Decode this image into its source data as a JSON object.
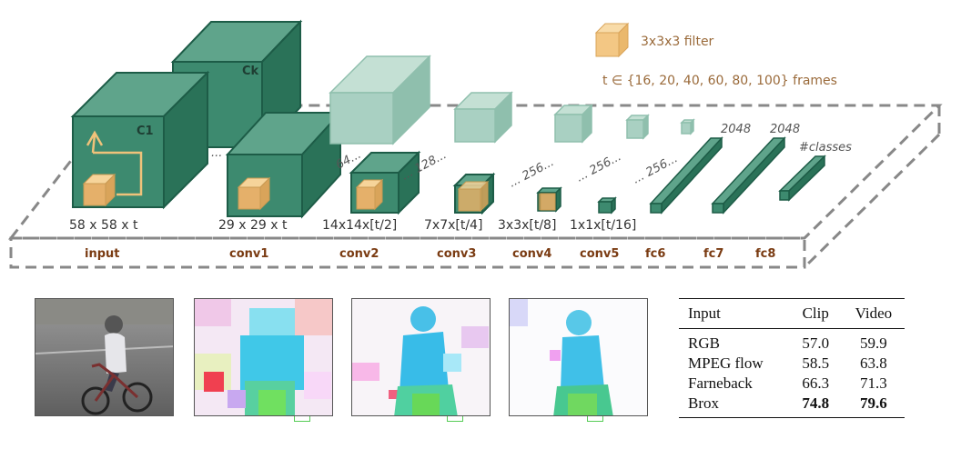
{
  "legend": {
    "filter_label": "3x3x3 filter",
    "t_label": "t ∈ {16, 20, 40, 60, 80, 100} frames"
  },
  "cube_labels": {
    "c1": "C1",
    "ck": "Ck"
  },
  "sizes": {
    "input": "58 x 58 x t",
    "conv1": "29 x 29 x t",
    "conv2": "14x14x[t/2]",
    "conv3": "7x7x[t/4]",
    "conv4": "3x3x[t/8]",
    "conv5": "1x1x[t/16]"
  },
  "layers": {
    "input": "input",
    "conv1": "conv1",
    "conv2": "conv2",
    "conv3": "conv3",
    "conv4": "conv4",
    "conv5": "conv5",
    "fc6": "fc6",
    "fc7": "fc7",
    "fc8": "fc8"
  },
  "channels": {
    "ellipsis": "...",
    "c64": "64...",
    "c128": "... 128...",
    "c256a": "... 256...",
    "c256b": "... 256...",
    "c256c": "... 256...",
    "fc6": "2048",
    "fc7": "2048",
    "fc8": "#classes"
  },
  "table": {
    "headers": [
      "Input",
      "Clip",
      "Video"
    ],
    "rows": [
      {
        "input": "RGB",
        "clip": "57.0",
        "video": "59.9"
      },
      {
        "input": "MPEG flow",
        "clip": "58.5",
        "video": "63.8"
      },
      {
        "input": "Farneback",
        "clip": "66.3",
        "video": "71.3"
      },
      {
        "input": "Brox",
        "clip": "74.8",
        "video": "79.6"
      }
    ]
  },
  "colors": {
    "cube_dark": "#2e8067",
    "cube_light": "#a9d0c2",
    "filter": "#f0c27a",
    "layer_label": "#7a3b12"
  }
}
